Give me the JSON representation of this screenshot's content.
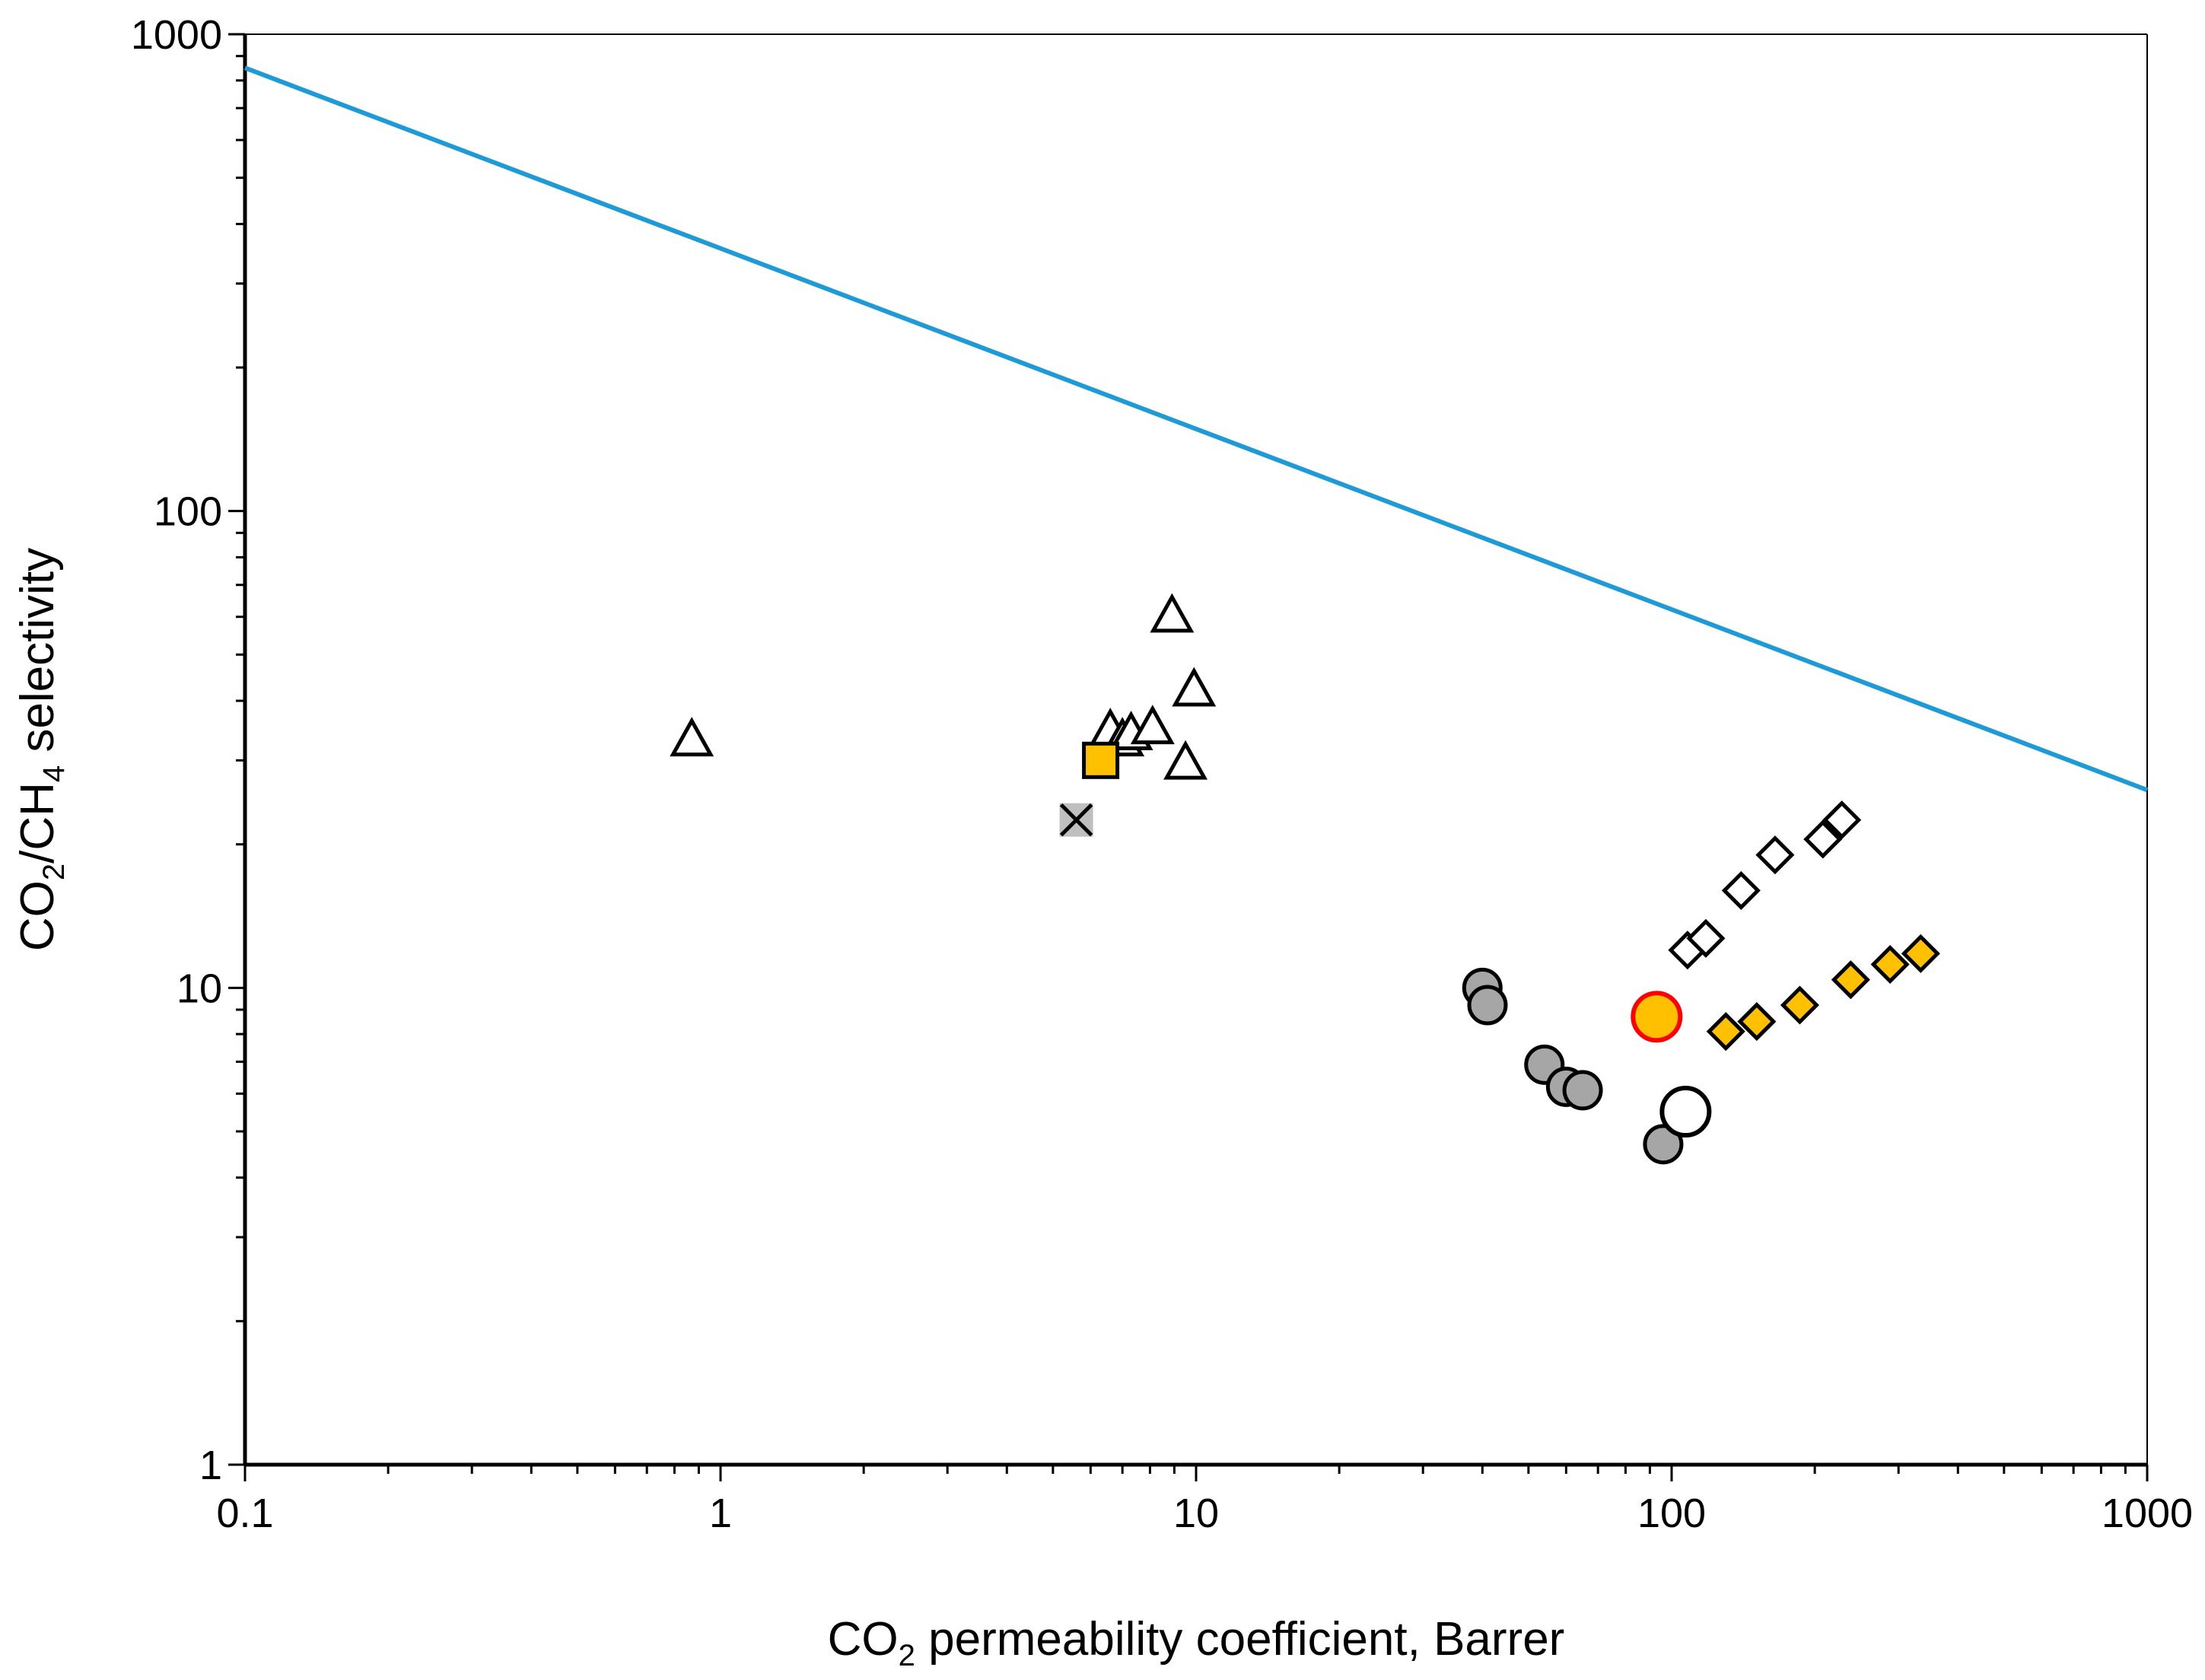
{
  "chart_data": {
    "type": "scatter",
    "xscale": "log",
    "yscale": "log",
    "xlim": [
      0.1,
      1000
    ],
    "ylim": [
      1,
      1000
    ],
    "grid": false,
    "legend": "none",
    "xlabel": {
      "pre": "CO",
      "sub": "2",
      "post": " permeability coefficient, Barrer"
    },
    "ylabel": {
      "a": "CO",
      "sub1": "2",
      "b": "/CH",
      "sub2": "4",
      "c": " selectivity"
    },
    "x_ticks": [
      "0.1",
      "1",
      "10",
      "100",
      "1000"
    ],
    "y_ticks": [
      "1",
      "10",
      "100",
      "1000"
    ],
    "upper_bound": {
      "name": "upper bound line",
      "color": "#1e9bd7",
      "x": [
        0.1,
        1000
      ],
      "y": [
        850,
        26
      ]
    },
    "series": [
      {
        "name": "triangles-open",
        "marker": "triangle",
        "fill": "#ffffff",
        "stroke": "#000000",
        "points": [
          [
            0.87,
            33
          ],
          [
            6.6,
            34.5
          ],
          [
            7.0,
            33
          ],
          [
            7.3,
            34
          ],
          [
            8.1,
            35
          ],
          [
            8.9,
            60
          ],
          [
            9.5,
            29.5
          ],
          [
            9.9,
            42
          ]
        ]
      },
      {
        "name": "square-yellow",
        "marker": "square",
        "fill": "#ffc000",
        "stroke": "#000000",
        "points": [
          [
            6.3,
            30
          ]
        ]
      },
      {
        "name": "cross-grey",
        "marker": "cross",
        "fill": "#bfbfbf",
        "stroke": "#000000",
        "points": [
          [
            5.6,
            22.5
          ]
        ]
      },
      {
        "name": "circles-grey",
        "marker": "circle",
        "fill": "#a6a6a6",
        "stroke": "#000000",
        "points": [
          [
            40,
            10
          ],
          [
            41,
            9.2
          ],
          [
            54,
            6.9
          ],
          [
            60,
            6.2
          ],
          [
            65,
            6.1
          ],
          [
            96,
            4.7
          ]
        ]
      },
      {
        "name": "circle-open",
        "marker": "circle-large",
        "fill": "#ffffff",
        "stroke": "#000000",
        "points": [
          [
            107,
            5.5
          ]
        ]
      },
      {
        "name": "circle-highlight",
        "marker": "circle-large",
        "fill": "#ffc000",
        "stroke": "#ff0000",
        "points": [
          [
            93,
            8.7
          ]
        ]
      },
      {
        "name": "diamonds-open",
        "marker": "diamond",
        "fill": "#ffffff",
        "stroke": "#000000",
        "points": [
          [
            108,
            12
          ],
          [
            118,
            12.7
          ],
          [
            140,
            16
          ],
          [
            165,
            19
          ],
          [
            208,
            20.5
          ],
          [
            228,
            22.5
          ]
        ]
      },
      {
        "name": "diamonds-yellow",
        "marker": "diamond",
        "fill": "#ffc000",
        "stroke": "#000000",
        "points": [
          [
            130,
            8.1
          ],
          [
            151,
            8.5
          ],
          [
            186,
            9.2
          ],
          [
            238,
            10.4
          ],
          [
            288,
            11.2
          ],
          [
            334,
            11.8
          ]
        ]
      }
    ]
  }
}
